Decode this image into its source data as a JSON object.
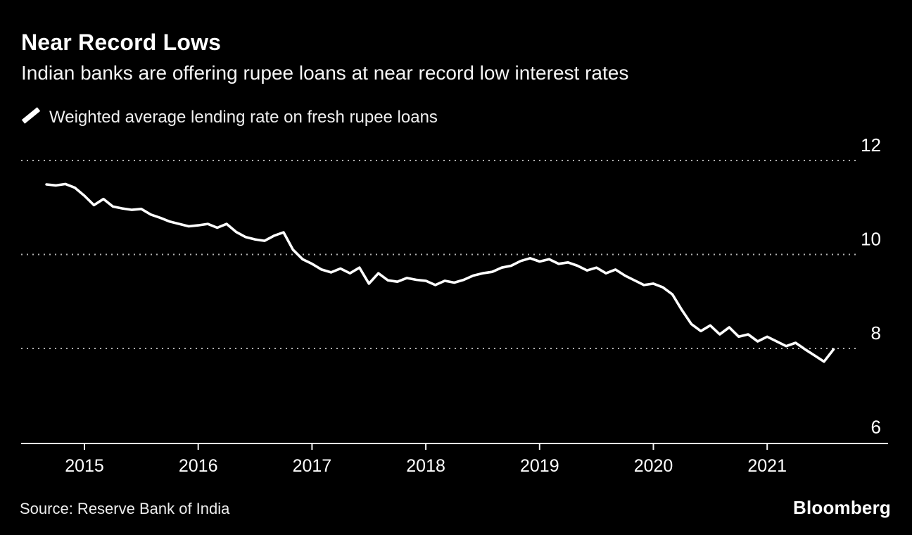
{
  "header": {
    "title": "Near Record Lows",
    "subtitle": "Indian banks are offering rupee loans at near record low interest rates"
  },
  "legend": {
    "label": "Weighted average lending rate on fresh rupee loans"
  },
  "chart_data": {
    "type": "line",
    "title": "Near Record Lows",
    "series_name": "Weighted average lending rate on fresh rupee loans",
    "unit": "percent",
    "ylim": [
      6,
      12
    ],
    "y_ticks": [
      12,
      10,
      8,
      6
    ],
    "x_ticks": [
      2015,
      2016,
      2017,
      2018,
      2019,
      2020,
      2021
    ],
    "grid": "dotted horizontal gridlines at 12, 10 and 8; solid baseline axis at 6",
    "legend_position": "top-left",
    "dates": [
      "2014-09",
      "2014-10",
      "2014-11",
      "2014-12",
      "2015-01",
      "2015-02",
      "2015-03",
      "2015-04",
      "2015-05",
      "2015-06",
      "2015-07",
      "2015-08",
      "2015-09",
      "2015-10",
      "2015-11",
      "2015-12",
      "2016-01",
      "2016-02",
      "2016-03",
      "2016-04",
      "2016-05",
      "2016-06",
      "2016-07",
      "2016-08",
      "2016-09",
      "2016-10",
      "2016-11",
      "2016-12",
      "2017-01",
      "2017-02",
      "2017-03",
      "2017-04",
      "2017-05",
      "2017-06",
      "2017-07",
      "2017-08",
      "2017-09",
      "2017-10",
      "2017-11",
      "2017-12",
      "2018-01",
      "2018-02",
      "2018-03",
      "2018-04",
      "2018-05",
      "2018-06",
      "2018-07",
      "2018-08",
      "2018-09",
      "2018-10",
      "2018-11",
      "2018-12",
      "2019-01",
      "2019-02",
      "2019-03",
      "2019-04",
      "2019-05",
      "2019-06",
      "2019-07",
      "2019-08",
      "2019-09",
      "2019-10",
      "2019-11",
      "2019-12",
      "2020-01",
      "2020-02",
      "2020-03",
      "2020-04",
      "2020-05",
      "2020-06",
      "2020-07",
      "2020-08",
      "2020-09",
      "2020-10",
      "2020-11",
      "2020-12",
      "2021-01",
      "2021-02",
      "2021-03",
      "2021-04",
      "2021-05",
      "2021-06",
      "2021-07",
      "2021-08"
    ],
    "values": [
      11.49,
      11.47,
      11.5,
      11.42,
      11.25,
      11.05,
      11.18,
      11.02,
      10.98,
      10.95,
      10.97,
      10.85,
      10.78,
      10.7,
      10.65,
      10.6,
      10.62,
      10.65,
      10.57,
      10.65,
      10.48,
      10.37,
      10.32,
      10.29,
      10.4,
      10.47,
      10.1,
      9.9,
      9.8,
      9.68,
      9.62,
      9.7,
      9.6,
      9.72,
      9.38,
      9.6,
      9.45,
      9.42,
      9.5,
      9.46,
      9.44,
      9.35,
      9.44,
      9.4,
      9.46,
      9.55,
      9.6,
      9.63,
      9.72,
      9.76,
      9.86,
      9.92,
      9.85,
      9.9,
      9.8,
      9.83,
      9.76,
      9.66,
      9.72,
      9.6,
      9.68,
      9.55,
      9.45,
      9.35,
      9.38,
      9.3,
      9.15,
      8.82,
      8.52,
      8.37,
      8.49,
      8.3,
      8.45,
      8.25,
      8.3,
      8.15,
      8.25,
      8.15,
      8.05,
      8.12,
      7.98,
      7.85,
      7.72,
      7.98
    ],
    "colors": {
      "line": "#ffffff",
      "grid": "#b0b0b0",
      "axis": "#f0f0f0",
      "background": "#000000",
      "tick_label": "#ffffff"
    }
  },
  "footer": {
    "source": "Source: Reserve Bank of India",
    "brand": "Bloomberg"
  }
}
